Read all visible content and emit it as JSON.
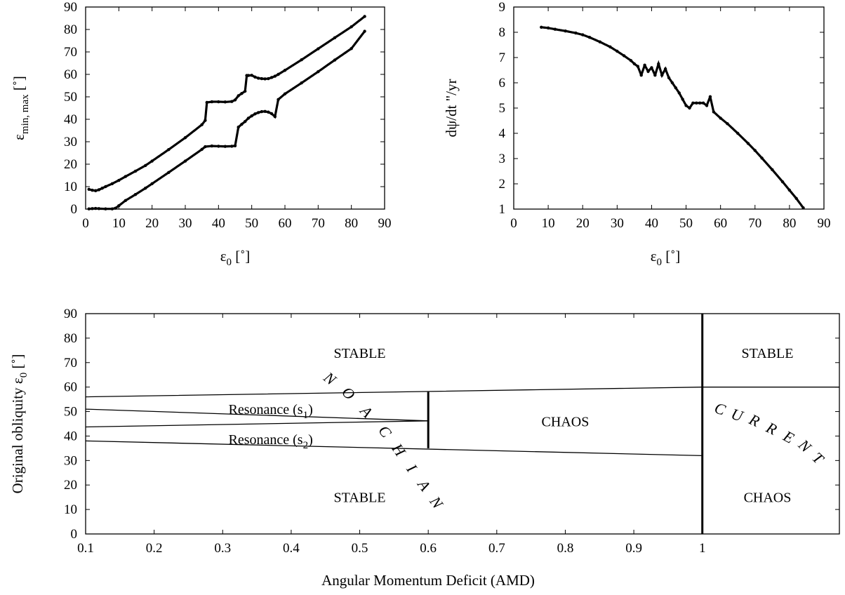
{
  "chart_data": [
    {
      "type": "scatter",
      "xlabel": "ε0 [˚]",
      "ylabel": "εmin, max [˚]",
      "xlabel_main": "ε",
      "xlabel_sub": "0",
      "xlabel_unit": " [˚]",
      "ylabel_main": "ε",
      "ylabel_sub": "min, max",
      "ylabel_unit": " [˚]",
      "xlim": [
        0,
        90
      ],
      "ylim": [
        0,
        90
      ],
      "xticks": [
        0,
        10,
        20,
        30,
        40,
        50,
        60,
        70,
        80,
        90
      ],
      "yticks": [
        0,
        10,
        20,
        30,
        40,
        50,
        60,
        70,
        80,
        90
      ],
      "grid": false,
      "series": [
        {
          "role": "maximum",
          "x": [
            1,
            2,
            3,
            4,
            5,
            6,
            8,
            10,
            12,
            15,
            18,
            20,
            25,
            30,
            35,
            36,
            36.5,
            38,
            40,
            42,
            44,
            45,
            46,
            47,
            48,
            48.5,
            49,
            50,
            51,
            52,
            53,
            54,
            55,
            56,
            57,
            58,
            60,
            65,
            70,
            75,
            80,
            84
          ],
          "y": [
            8.8,
            8.4,
            8.2,
            8.6,
            9.3,
            10,
            11.3,
            12.8,
            14.5,
            16.9,
            19.4,
            21.4,
            26.5,
            31.8,
            37.6,
            39.5,
            47.5,
            47.8,
            47.8,
            47.7,
            47.9,
            48.6,
            50.5,
            51.5,
            52.5,
            59.5,
            59.5,
            59.6,
            58.8,
            58.3,
            58.1,
            58.0,
            58.1,
            58.6,
            59.2,
            60.0,
            61.8,
            66.5,
            71.4,
            76.3,
            81.2,
            85.8
          ]
        },
        {
          "role": "minimum",
          "x": [
            1,
            2,
            3,
            4,
            6,
            8,
            9,
            10,
            12,
            15,
            18,
            20,
            25,
            30,
            35,
            36,
            38,
            40,
            42,
            44,
            45,
            46,
            47,
            48,
            49,
            50,
            51,
            52,
            53,
            54,
            55,
            56,
            57,
            58,
            60,
            65,
            70,
            75,
            80,
            84
          ],
          "y": [
            0.1,
            0.2,
            0.3,
            0.2,
            0.1,
            0.1,
            0.4,
            1.5,
            3.8,
            6.5,
            9.3,
            11.3,
            16.3,
            21.4,
            26.6,
            27.8,
            28.1,
            28.0,
            27.9,
            28.0,
            28.2,
            36.5,
            37.8,
            39.0,
            40.5,
            41.5,
            42.4,
            43.0,
            43.4,
            43.5,
            43.2,
            42.5,
            41.2,
            48.8,
            51.3,
            56.2,
            61.2,
            66.4,
            71.5,
            79.2
          ]
        }
      ]
    },
    {
      "type": "scatter",
      "xlabel": "ε0 [˚]",
      "ylabel": "dψ/dt \"/yr",
      "xlabel_main": "ε",
      "xlabel_sub": "0",
      "xlabel_unit": " [˚]",
      "ylabel_text": "dψ/dt \"/yr",
      "xlim": [
        0,
        90
      ],
      "ylim": [
        1,
        9
      ],
      "xticks": [
        0,
        10,
        20,
        30,
        40,
        50,
        60,
        70,
        80,
        90
      ],
      "yticks": [
        1,
        2,
        3,
        4,
        5,
        6,
        7,
        8,
        9
      ],
      "grid": false,
      "series": [
        {
          "role": "precession",
          "x": [
            8,
            10,
            12,
            15,
            18,
            20,
            22,
            25,
            28,
            30,
            32,
            34,
            35,
            36,
            37,
            38,
            39,
            40,
            41,
            42,
            43,
            44,
            45,
            46,
            47,
            48,
            49,
            50,
            51,
            52,
            53,
            54,
            55,
            56,
            57,
            58,
            60,
            62,
            65,
            68,
            70,
            72,
            75,
            78,
            80,
            82,
            84
          ],
          "y": [
            8.2,
            8.17,
            8.12,
            8.05,
            7.97,
            7.9,
            7.8,
            7.62,
            7.42,
            7.25,
            7.07,
            6.88,
            6.75,
            6.65,
            6.3,
            6.7,
            6.45,
            6.6,
            6.3,
            6.75,
            6.3,
            6.55,
            6.2,
            6.0,
            5.8,
            5.6,
            5.35,
            5.1,
            5.0,
            5.2,
            5.2,
            5.2,
            5.2,
            5.1,
            5.45,
            4.85,
            4.6,
            4.38,
            4.0,
            3.6,
            3.32,
            3.02,
            2.56,
            2.08,
            1.75,
            1.42,
            1.05
          ]
        }
      ]
    },
    {
      "type": "diagram",
      "xlabel": "Angular Momentum Deficit (AMD)",
      "ylabel": "Original obliquity ε0 [˚]",
      "ylabel_main": "Original obliquity ε",
      "ylabel_sub": "0",
      "ylabel_unit": " [˚]",
      "xlim": [
        0.1,
        1.2
      ],
      "ylim": [
        0,
        90
      ],
      "xticks": [
        0.1,
        0.2,
        0.3,
        0.4,
        0.5,
        0.6,
        0.7,
        0.8,
        0.9,
        1
      ],
      "xtick_labels": [
        "0.1",
        "0.2",
        "0.3",
        "0.4",
        "0.5",
        "0.6",
        "0.7",
        "0.8",
        "0.9",
        "1"
      ],
      "yticks": [
        0,
        10,
        20,
        30,
        40,
        50,
        60,
        70,
        80,
        90
      ],
      "grid": false,
      "boundaries": [
        {
          "name": "chaos-upper",
          "x": [
            0.1,
            1.0,
            1.2
          ],
          "y": [
            56,
            60,
            60
          ]
        },
        {
          "name": "s1-lower",
          "x": [
            0.1,
            0.6
          ],
          "y": [
            51,
            46.2
          ]
        },
        {
          "name": "s2-upper",
          "x": [
            0.1,
            0.6
          ],
          "y": [
            43.7,
            46.2
          ]
        },
        {
          "name": "chaos-lower",
          "x": [
            0.1,
            1.0
          ],
          "y": [
            38,
            32
          ]
        }
      ],
      "verticals": [
        {
          "name": "noachian-divider",
          "x": 0.6,
          "y": [
            35,
            58
          ]
        },
        {
          "name": "current-divider",
          "x": 1.0,
          "y": [
            0,
            90
          ]
        }
      ],
      "regions": [
        {
          "text": "STABLE",
          "x": 0.5,
          "y": 74
        },
        {
          "text": "STABLE",
          "x": 0.5,
          "y": 15
        },
        {
          "text": "CHAOS",
          "x": 0.8,
          "y": 46
        },
        {
          "text": "STABLE",
          "x": 1.095,
          "y": 74
        },
        {
          "text": "CHAOS",
          "x": 1.095,
          "y": 15
        }
      ],
      "resonances": [
        {
          "text_main": "Resonance (s",
          "sub": "1",
          "text_close": ")",
          "x": 0.37,
          "y": 51
        },
        {
          "text_main": "Resonance (s",
          "sub": "2",
          "text_close": ")",
          "x": 0.37,
          "y": 38.7
        }
      ],
      "curved_labels": [
        {
          "name": "noachian",
          "letters": [
            "N",
            "O",
            "A",
            "C",
            "H",
            "I",
            "A",
            "N"
          ],
          "x": [
            0.455,
            0.482,
            0.508,
            0.535,
            0.555,
            0.574,
            0.592,
            0.61
          ],
          "y": [
            63,
            57,
            49.5,
            41.5,
            34,
            26.5,
            19.5,
            12.5
          ]
        },
        {
          "name": "current",
          "letters": [
            "C",
            "U",
            "R",
            "R",
            "E",
            "N",
            "T"
          ],
          "x": [
            1.025,
            1.05,
            1.075,
            1.1,
            1.125,
            1.148,
            1.167
          ],
          "y": [
            50.5,
            48,
            45.8,
            42.5,
            39,
            35.5,
            30.5
          ]
        }
      ]
    }
  ]
}
